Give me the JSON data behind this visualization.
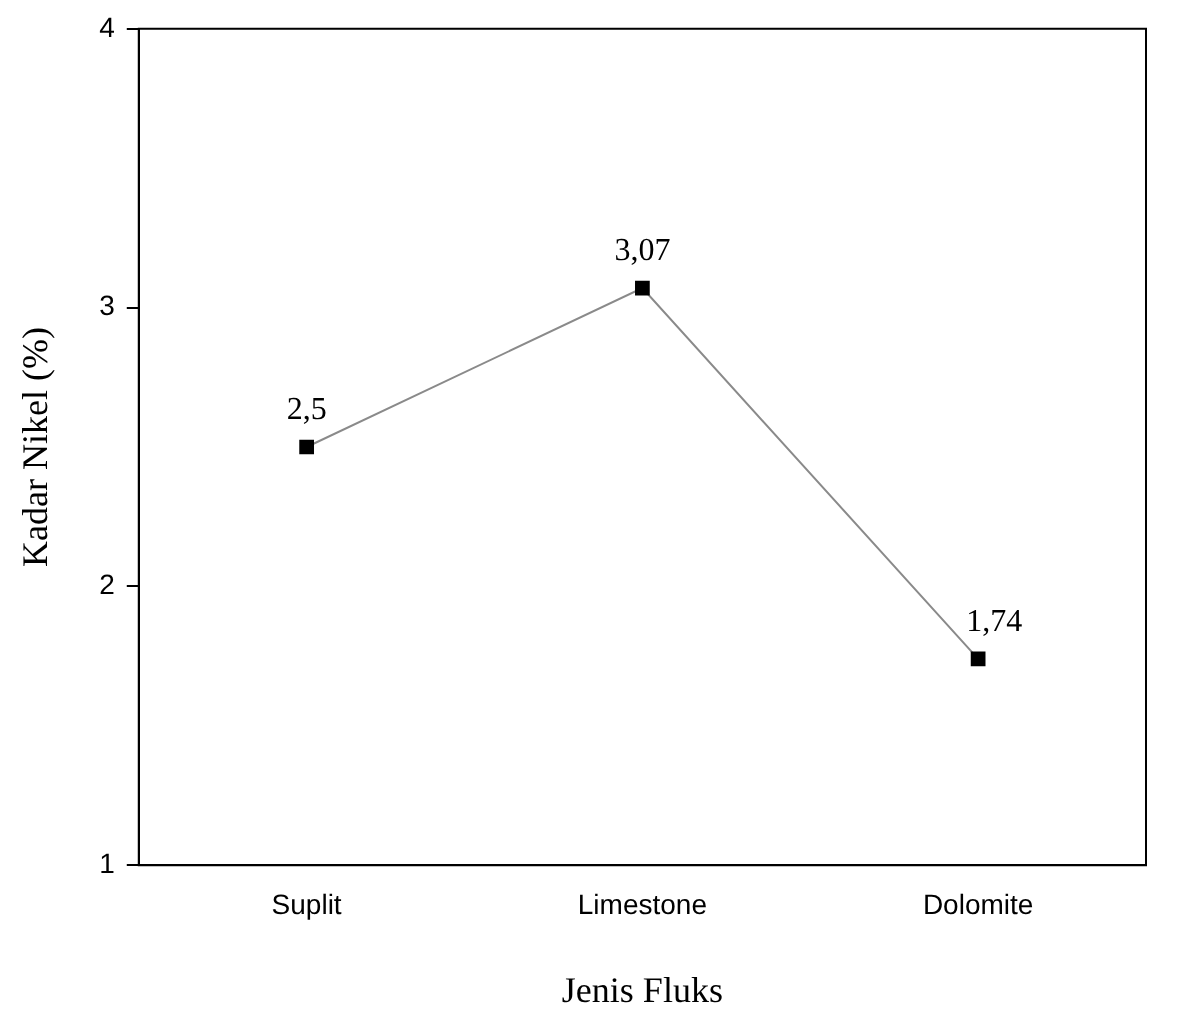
{
  "chart_data": {
    "type": "line",
    "xlabel": "Jenis Fluks",
    "ylabel": "Kadar Nikel (%)",
    "categories": [
      "Suplit",
      "Limestone",
      "Dolomite"
    ],
    "series": [
      {
        "color": "#000000",
        "values": [
          2.5,
          3.07,
          1.74
        ],
        "value_labels": [
          "2,5",
          "3,07",
          "1,74"
        ]
      }
    ],
    "ylim": [
      1,
      4
    ],
    "yticks": [
      1,
      2,
      3,
      4
    ],
    "grid": false,
    "legend": false,
    "marker": "square",
    "line_style": "solid"
  }
}
